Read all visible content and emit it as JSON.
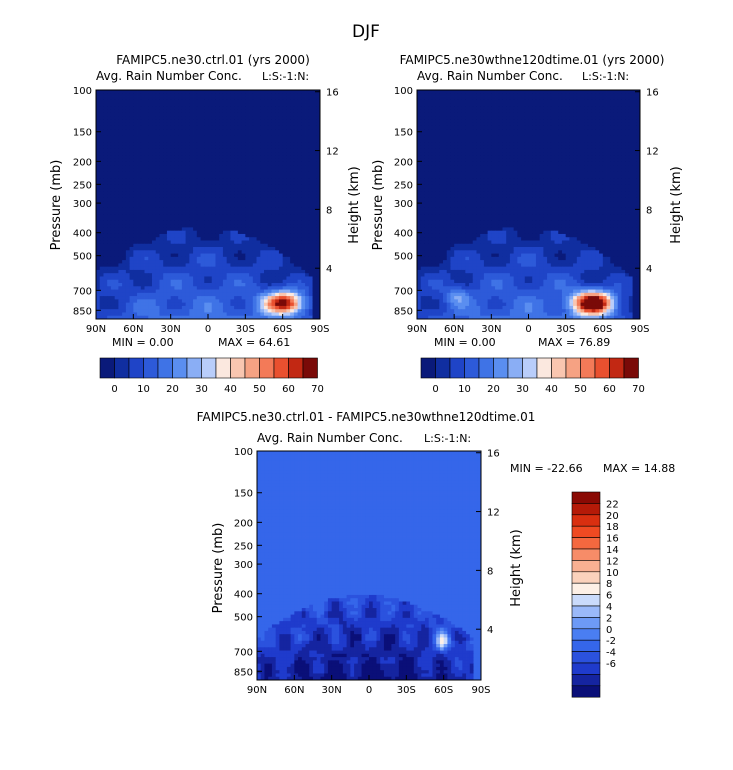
{
  "page_title": "DJF",
  "colors": {
    "ctrl_palette": [
      "#0a1a7a",
      "#102ea0",
      "#1f44c7",
      "#2d5ad9",
      "#3f73e6",
      "#5a8ef0",
      "#8aaef5",
      "#b9cdfa",
      "#fbe8df",
      "#f9c6b0",
      "#f6a283",
      "#f37a58",
      "#e9502f",
      "#c22813",
      "#7a0a08"
    ],
    "diff_palette": [
      "#0a0f78",
      "#1524a0",
      "#1f3bcc",
      "#2b52de",
      "#3566ea",
      "#4a7ef2",
      "#6d9af6",
      "#9ab9f9",
      "#cadbfb",
      "#fdf0e6",
      "#fbd2bc",
      "#f9b092",
      "#f78c68",
      "#f4683f",
      "#ef4a22",
      "#d92f10",
      "#b51a08",
      "#8a0a04"
    ],
    "background": "#3f73e6"
  },
  "chart_data": [
    {
      "type": "contour",
      "title": "FAMIPC5.ne30.ctrl.01 (yrs 2000)",
      "subtitle": "Avg. Rain Number Conc.",
      "units_label": "L:S:-1:N:",
      "xlabel": "",
      "ylabel": "Pressure (mb)",
      "ylabel_right": "Height (km)",
      "x_ticks": [
        "90N",
        "60N",
        "30N",
        "0",
        "30S",
        "60S",
        "90S"
      ],
      "y_ticks": [
        "100",
        "150",
        "200",
        "250",
        "300",
        "400",
        "500",
        "700",
        "850"
      ],
      "y_right_ticks": [
        "16",
        "12",
        "8",
        "4"
      ],
      "min_label": "MIN =    0.00",
      "max_label": "MAX =   64.61",
      "min": 0.0,
      "max": 64.61,
      "colorbar_labels": [
        "0",
        "10",
        "20",
        "30",
        "40",
        "50",
        "60",
        "70"
      ]
    },
    {
      "type": "contour",
      "title": "FAMIPC5.ne30wthne120dtime.01 (yrs 2000)",
      "subtitle": "Avg. Rain Number Conc.",
      "units_label": "L:S:-1:N:",
      "xlabel": "",
      "ylabel": "Pressure (mb)",
      "ylabel_right": "Height (km)",
      "x_ticks": [
        "90N",
        "60N",
        "30N",
        "0",
        "30S",
        "60S",
        "90S"
      ],
      "y_ticks": [
        "100",
        "150",
        "200",
        "250",
        "300",
        "400",
        "500",
        "700",
        "850"
      ],
      "y_right_ticks": [
        "16",
        "12",
        "8",
        "4"
      ],
      "min_label": "MIN =    0.00",
      "max_label": "MAX =   76.89",
      "min": 0.0,
      "max": 76.89,
      "colorbar_labels": [
        "0",
        "10",
        "20",
        "30",
        "40",
        "50",
        "60",
        "70"
      ]
    },
    {
      "type": "contour",
      "title": "FAMIPC5.ne30.ctrl.01 - FAMIPC5.ne30wthne120dtime.01",
      "subtitle": "Avg. Rain Number Conc.",
      "units_label": "L:S:-1:N:",
      "xlabel": "",
      "ylabel": "Pressure (mb)",
      "ylabel_right": "Height (km)",
      "x_ticks": [
        "90N",
        "60N",
        "30N",
        "0",
        "30S",
        "60S",
        "90S"
      ],
      "y_ticks": [
        "100",
        "150",
        "200",
        "250",
        "300",
        "400",
        "500",
        "700",
        "850"
      ],
      "y_right_ticks": [
        "16",
        "12",
        "8",
        "4"
      ],
      "min_label": "MIN = -22.66",
      "max_label": "MAX =  14.88",
      "min": -22.66,
      "max": 14.88,
      "colorbar_labels": [
        "22",
        "20",
        "18",
        "16",
        "14",
        "12",
        "10",
        "8",
        "6",
        "4",
        "2",
        "0",
        "-2",
        "-4",
        "-6"
      ]
    }
  ]
}
